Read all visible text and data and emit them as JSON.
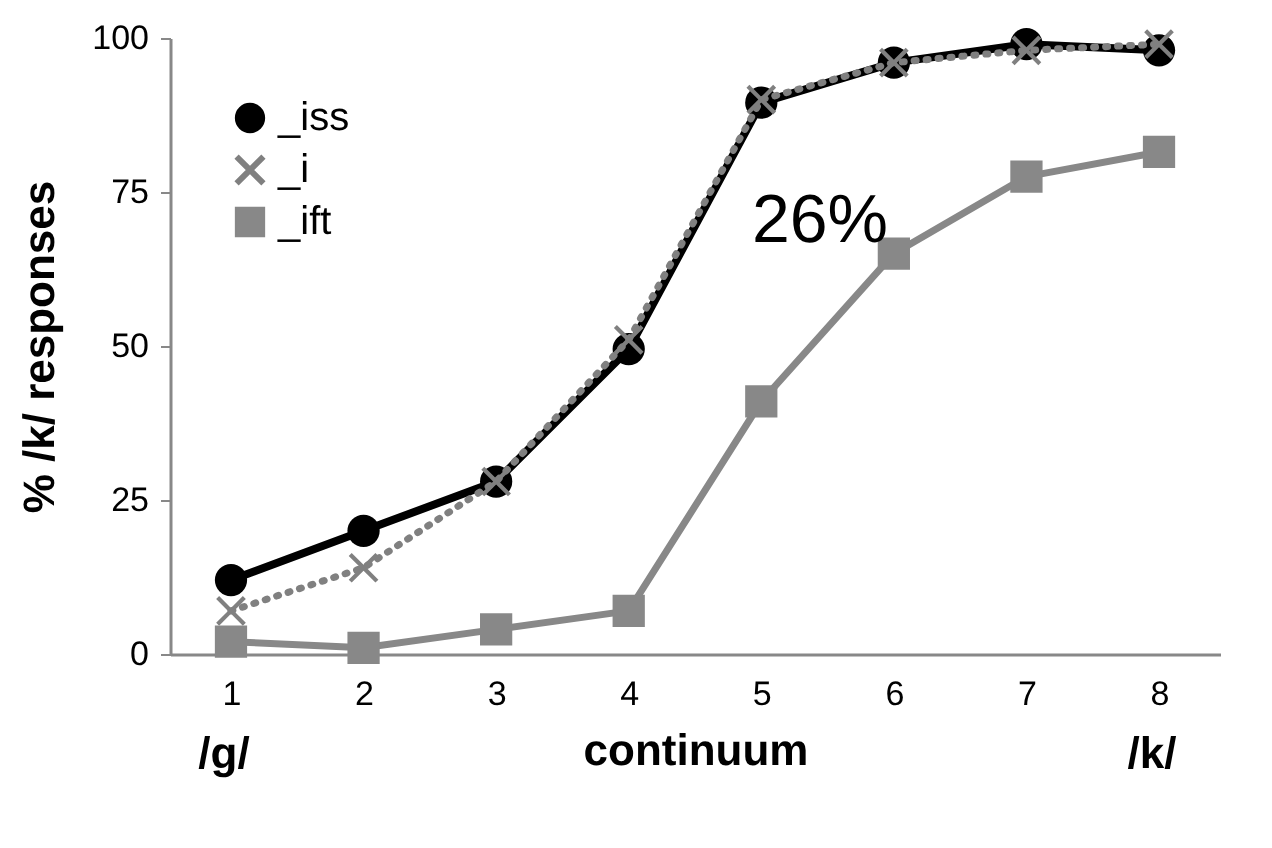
{
  "chart_data": {
    "type": "line",
    "ylabel": "% /k/ responses",
    "xlabel": "continuum",
    "categories": [
      "1",
      "2",
      "3",
      "4",
      "5",
      "6",
      "7",
      "8"
    ],
    "series": [
      {
        "name": "_iss",
        "color": "#000000",
        "marker": "circle",
        "line_style": "solid",
        "values": [
          12,
          20,
          28,
          49.5,
          89.5,
          96,
          99,
          98
        ]
      },
      {
        "name": "_i",
        "color": "#808080",
        "marker": "cross",
        "line_style": "dotted",
        "values": [
          7,
          14,
          28,
          51,
          90,
          96,
          98,
          99
        ]
      },
      {
        "name": "_ift",
        "color": "#888888",
        "marker": "square",
        "line_style": "solid",
        "values": [
          2,
          1,
          4,
          7,
          41,
          65,
          77.5,
          81.5
        ]
      }
    ],
    "ylim": [
      0,
      100
    ],
    "yticks": [
      0,
      25,
      50,
      75,
      100
    ],
    "grid": false,
    "legend": "top left",
    "annotations": [
      "26%",
      "/g/",
      "/k/"
    ]
  }
}
